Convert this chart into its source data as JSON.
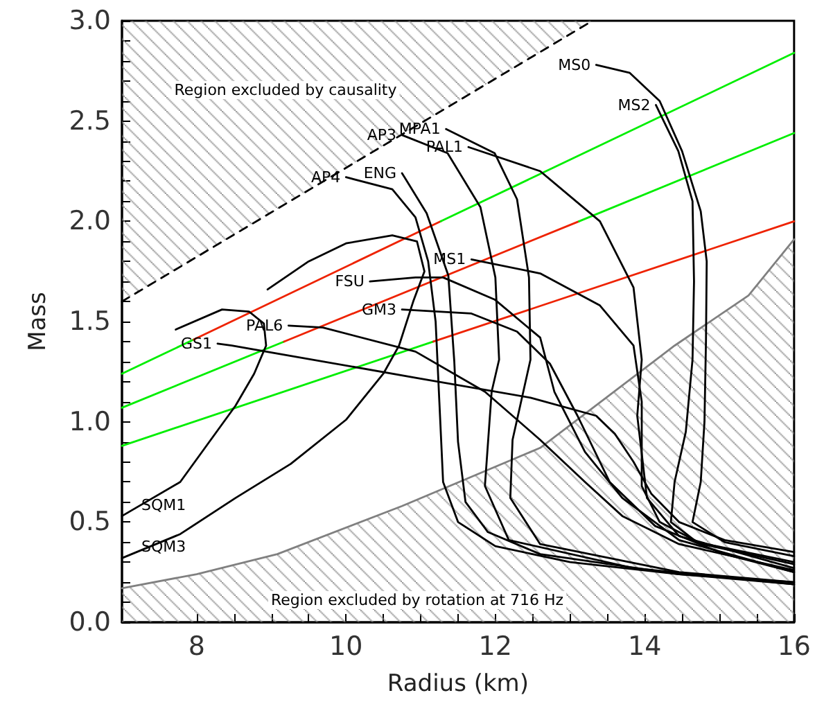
{
  "chart_data": {
    "type": "line",
    "xlabel": "Radius (km)",
    "ylabel": "Mass",
    "xlim": [
      7,
      16
    ],
    "ylim": [
      0,
      3
    ],
    "xticks": [
      8,
      {
        "value": 8.5,
        "label": null
      },
      {
        "value": 9,
        "label": null
      },
      {
        "value": 9.5,
        "label": null
      },
      10,
      {
        "value": 10.5,
        "label": null
      },
      {
        "value": 11,
        "label": null
      },
      {
        "value": 11.5,
        "label": null
      },
      12,
      {
        "value": 12.5,
        "label": null
      },
      {
        "value": 13,
        "label": null
      },
      {
        "value": 13.5,
        "label": null
      },
      14,
      {
        "value": 14.5,
        "label": null
      },
      {
        "value": 15,
        "label": null
      },
      {
        "value": 15.5,
        "label": null
      },
      16
    ],
    "yticks": [
      {
        "value": 0,
        "label": "0.0"
      },
      {
        "value": 0.1,
        "label": null
      },
      {
        "value": 0.2,
        "label": null
      },
      {
        "value": 0.3,
        "label": null
      },
      {
        "value": 0.4,
        "label": null
      },
      {
        "value": 0.5,
        "label": "0.5"
      },
      {
        "value": 0.6,
        "label": null
      },
      {
        "value": 0.7,
        "label": null
      },
      {
        "value": 0.8,
        "label": null
      },
      {
        "value": 0.9,
        "label": null
      },
      {
        "value": 1,
        "label": "1.0"
      },
      {
        "value": 1.1,
        "label": null
      },
      {
        "value": 1.2,
        "label": null
      },
      {
        "value": 1.3,
        "label": null
      },
      {
        "value": 1.4,
        "label": null
      },
      {
        "value": 1.5,
        "label": "1.5"
      },
      {
        "value": 1.6,
        "label": null
      },
      {
        "value": 1.7,
        "label": null
      },
      {
        "value": 1.8,
        "label": null
      },
      {
        "value": 1.9,
        "label": null
      },
      {
        "value": 2,
        "label": "2.0"
      },
      {
        "value": 2.1,
        "label": null
      },
      {
        "value": 2.2,
        "label": null
      },
      {
        "value": 2.3,
        "label": null
      },
      {
        "value": 2.4,
        "label": null
      },
      {
        "value": 2.5,
        "label": "2.5"
      },
      {
        "value": 2.6,
        "label": null
      },
      {
        "value": 2.7,
        "label": null
      },
      {
        "value": 2.8,
        "label": null
      },
      {
        "value": 2.9,
        "label": null
      },
      {
        "value": 3,
        "label": "3.0"
      }
    ],
    "grid": false,
    "marker": "none",
    "series": [
      {
        "type": "area",
        "color": "#000000",
        "line_style": "dashed",
        "x": [
          7,
          13.3
        ],
        "values": [
          1.6,
          3.0
        ]
      },
      {
        "type": "area",
        "color": "#808080",
        "x": [
          7,
          8,
          9.08,
          10.75,
          12.6,
          14.4,
          15.39,
          16
        ],
        "values": [
          0.17,
          0.24,
          0.34,
          0.58,
          0.87,
          1.38,
          1.63,
          1.91
        ]
      },
      {
        "color": "#00ee00",
        "x": [
          7,
          7.96
        ],
        "values": [
          1.24,
          1.41
        ]
      },
      {
        "color": "#ee2200",
        "x": [
          7.96,
          11.27
        ],
        "values": [
          1.41,
          2.0
        ]
      },
      {
        "color": "#00ee00",
        "x": [
          11.27,
          16
        ],
        "values": [
          2.0,
          2.84
        ]
      },
      {
        "color": "#00ee00",
        "x": [
          7,
          9.17
        ],
        "values": [
          1.07,
          1.4
        ]
      },
      {
        "color": "#ee2200",
        "x": [
          9.17,
          13.12
        ],
        "values": [
          1.4,
          2.0
        ]
      },
      {
        "color": "#00ee00",
        "x": [
          13.12,
          16
        ],
        "values": [
          2.0,
          2.44
        ]
      },
      {
        "color": "#00ee00",
        "x": [
          7,
          11.17
        ],
        "values": [
          0.88,
          1.4
        ]
      },
      {
        "color": "#ee2200",
        "x": [
          11.17,
          16
        ],
        "values": [
          1.4,
          2.0
        ]
      },
      {
        "name": "SQM1",
        "color": "#000000",
        "x": [
          7,
          7.78,
          8.15,
          8.52,
          8.77,
          8.93,
          8.9,
          8.7,
          8.34,
          7.72
        ],
        "values": [
          0.53,
          0.7,
          0.89,
          1.08,
          1.24,
          1.38,
          1.49,
          1.55,
          1.56,
          1.46
        ]
      },
      {
        "name": "SQM3",
        "color": "#000000",
        "x": [
          7,
          7.78,
          8.52,
          9.26,
          10.0,
          10.5,
          10.71,
          10.9,
          11.05,
          10.95,
          10.62,
          10.0,
          9.5,
          8.95
        ],
        "values": [
          0.32,
          0.44,
          0.62,
          0.79,
          1.01,
          1.24,
          1.38,
          1.6,
          1.75,
          1.9,
          1.93,
          1.89,
          1.8,
          1.66
        ]
      },
      {
        "name": "GS1",
        "color": "#000000",
        "x": [
          8.28,
          8.47,
          10.93,
          12.47,
          13.35,
          13.6,
          13.85,
          14.09,
          14.46,
          15.07,
          16
        ],
        "values": [
          1.39,
          1.38,
          1.22,
          1.12,
          1.03,
          0.94,
          0.8,
          0.64,
          0.5,
          0.41,
          0.35
        ]
      },
      {
        "name": "PAL6",
        "color": "#000000",
        "x": [
          9.23,
          9.69,
          10.93,
          11.86,
          12.6,
          13.2,
          13.7,
          14.46,
          16
        ],
        "values": [
          1.48,
          1.47,
          1.35,
          1.15,
          0.91,
          0.7,
          0.53,
          0.39,
          0.26
        ]
      },
      {
        "name": "FSU",
        "color": "#000000",
        "x": [
          10.32,
          10.93,
          11.3,
          11.99,
          12.6,
          12.79,
          13.2,
          13.7,
          14.46,
          16
        ],
        "values": [
          1.7,
          1.72,
          1.72,
          1.61,
          1.42,
          1.15,
          0.85,
          0.62,
          0.41,
          0.25
        ]
      },
      {
        "name": "GM3",
        "color": "#000000",
        "x": [
          10.75,
          11.68,
          12.29,
          12.73,
          13.1,
          13.53,
          14.14,
          15.07,
          16
        ],
        "values": [
          1.56,
          1.54,
          1.45,
          1.29,
          1.03,
          0.7,
          0.48,
          0.34,
          0.25
        ]
      },
      {
        "name": "AP4",
        "color": "#000000",
        "x": [
          10.0,
          10.62,
          10.93,
          11.1,
          11.2,
          11.25,
          11.3,
          11.5,
          12.0,
          13.0,
          14.46,
          16
        ],
        "values": [
          2.22,
          2.16,
          2.02,
          1.8,
          1.5,
          1.1,
          0.7,
          0.5,
          0.38,
          0.3,
          0.24,
          0.2
        ]
      },
      {
        "name": "ENG",
        "color": "#000000",
        "x": [
          10.75,
          11.08,
          11.37,
          11.45,
          11.5,
          11.6,
          11.9,
          12.6,
          14.46,
          16
        ],
        "values": [
          2.24,
          2.04,
          1.73,
          1.3,
          0.9,
          0.6,
          0.45,
          0.34,
          0.24,
          0.19
        ]
      },
      {
        "name": "AP3",
        "color": "#000000",
        "x": [
          10.75,
          11.36,
          11.8,
          12.0,
          12.05,
          11.95,
          11.86,
          12.18,
          13.85,
          16
        ],
        "values": [
          2.43,
          2.34,
          2.07,
          1.72,
          1.31,
          1.15,
          0.68,
          0.41,
          0.27,
          0.19
        ]
      },
      {
        "name": "MPA1",
        "color": "#000000",
        "x": [
          11.34,
          11.99,
          12.29,
          12.45,
          12.47,
          12.23,
          12.2,
          12.6,
          14.46,
          16
        ],
        "values": [
          2.46,
          2.34,
          2.11,
          1.72,
          1.31,
          0.91,
          0.62,
          0.39,
          0.25,
          0.2
        ]
      },
      {
        "name": "PAL1",
        "color": "#000000",
        "x": [
          11.64,
          12.6,
          13.4,
          13.85,
          13.96,
          13.9,
          14.03,
          14.46,
          16
        ],
        "values": [
          2.37,
          2.25,
          2.0,
          1.67,
          1.31,
          1.03,
          0.62,
          0.43,
          0.27
        ]
      },
      {
        "name": "MS1",
        "color": "#000000",
        "x": [
          11.68,
          12.6,
          13.4,
          13.85,
          13.96,
          13.96,
          14.2,
          14.77,
          16
        ],
        "values": [
          1.81,
          1.74,
          1.58,
          1.38,
          1.1,
          0.68,
          0.5,
          0.39,
          0.29
        ]
      },
      {
        "name": "MS2",
        "color": "#000000",
        "x": [
          14.15,
          14.45,
          14.64,
          14.66,
          14.64,
          14.55,
          14.4,
          14.35,
          14.7,
          16
        ],
        "values": [
          2.58,
          2.35,
          2.1,
          1.7,
          1.31,
          0.95,
          0.7,
          0.5,
          0.4,
          0.3
        ]
      },
      {
        "name": "MS0",
        "color": "#000000",
        "x": [
          13.35,
          13.8,
          14.2,
          14.5,
          14.75,
          14.83,
          14.82,
          14.8,
          14.75,
          14.64,
          15.07,
          16
        ],
        "values": [
          2.78,
          2.74,
          2.6,
          2.35,
          2.05,
          1.8,
          1.4,
          1.0,
          0.7,
          0.5,
          0.4,
          0.33
        ]
      }
    ],
    "annotations": [
      "Region excluded by causality",
      "Region excluded by rotation at 716 Hz"
    ]
  }
}
